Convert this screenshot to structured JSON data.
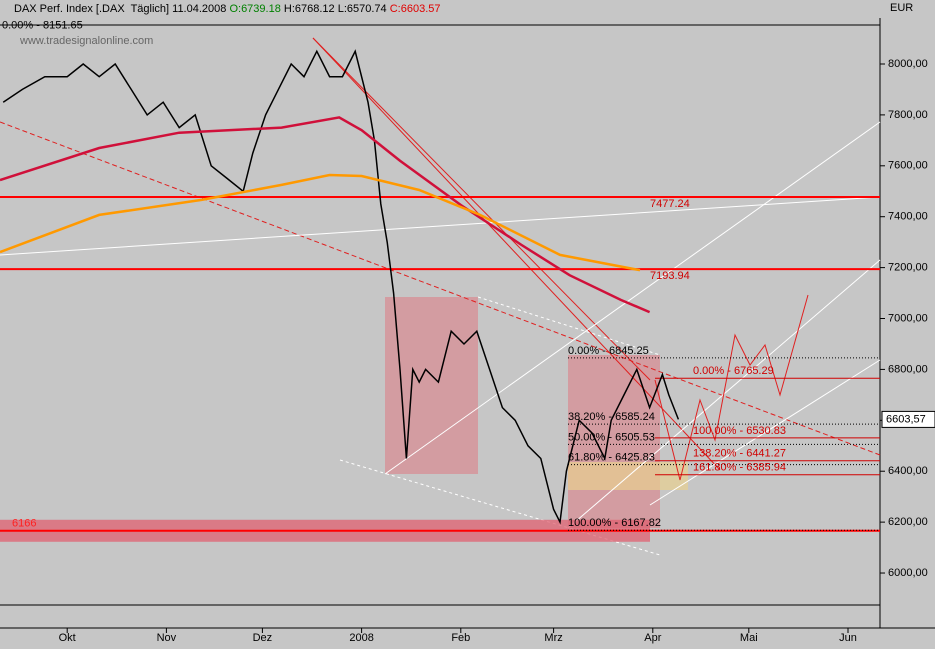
{
  "chart_data": {
    "type": "line",
    "header": {
      "name": "DAX Perf. Index [.DAX  Täglich] 11.04.2008",
      "open": "O:6739.18",
      "high_low": "H:6768.12 L:6570.74",
      "close": "C:6603.57"
    },
    "watermark": "www.tradesignalonline.com",
    "ylabel": "EUR",
    "ylim": [
      5784,
      8165
    ],
    "yticks": [
      {
        "value": 6000,
        "label": "6000,00"
      },
      {
        "value": 6200,
        "label": "6200,00"
      },
      {
        "value": 6400,
        "label": "6400,00"
      },
      {
        "value": 6600,
        "label": "6600,00"
      },
      {
        "value": 6800,
        "label": "6800,00"
      },
      {
        "value": 7000,
        "label": "7000,00"
      },
      {
        "value": 7200,
        "label": "7200,00"
      },
      {
        "value": 7400,
        "label": "7400,00"
      },
      {
        "value": 7600,
        "label": "7600,00"
      },
      {
        "value": 7800,
        "label": "7800,00"
      },
      {
        "value": 8000,
        "label": "8000,00"
      }
    ],
    "xlim": [
      -21,
      254
    ],
    "xticks": [
      {
        "value": 0,
        "label": "Okt"
      },
      {
        "value": 31,
        "label": "Nov"
      },
      {
        "value": 61,
        "label": "Dez"
      },
      {
        "value": 92,
        "label": "2008"
      },
      {
        "value": 123,
        "label": "Feb"
      },
      {
        "value": 152,
        "label": "Mrz"
      },
      {
        "value": 183,
        "label": "Apr"
      },
      {
        "value": 213,
        "label": "Mai"
      },
      {
        "value": 244,
        "label": "Jun"
      }
    ],
    "series": [
      {
        "color": "#000000",
        "x": [
          -20,
          -14,
          -7,
          0,
          5,
          10,
          15,
          20,
          25,
          30,
          35,
          40,
          45,
          50,
          55,
          58,
          62,
          66,
          70,
          74,
          78,
          82,
          86,
          90,
          94,
          96,
          98,
          100,
          102,
          104,
          106,
          108,
          110,
          112,
          116,
          120,
          124,
          128,
          132,
          136,
          140,
          144,
          148,
          150,
          152,
          154,
          156,
          160,
          164,
          168,
          170,
          174,
          178,
          182,
          186,
          188,
          191
        ],
        "values": [
          7850,
          7900,
          7950,
          7950,
          8000,
          7950,
          8000,
          7900,
          7800,
          7850,
          7750,
          7800,
          7600,
          7550,
          7500,
          7650,
          7800,
          7900,
          8000,
          7950,
          8050,
          7950,
          7950,
          8050,
          7850,
          7700,
          7450,
          7300,
          7100,
          6800,
          6450,
          6800,
          6750,
          6800,
          6750,
          6950,
          6900,
          6950,
          6800,
          6650,
          6600,
          6500,
          6450,
          6350,
          6250,
          6200,
          6400,
          6600,
          6550,
          6450,
          6600,
          6700,
          6800,
          6650,
          6780,
          6700,
          6603.57
        ]
      },
      {
        "color": "#d0103a",
        "x": [
          -21,
          10,
          35,
          67,
          85,
          92,
          104,
          123,
          142,
          157,
          173,
          182
        ],
        "values": [
          7544,
          7670,
          7730,
          7750,
          7790,
          7740,
          7620,
          7446,
          7289,
          7170,
          7073,
          7025
        ]
      },
      {
        "color": "#ff9900",
        "x": [
          -21,
          10,
          42,
          67,
          82,
          92,
          110,
          129,
          154,
          179
        ],
        "values": [
          7261,
          7407,
          7466,
          7525,
          7564,
          7560,
          7505,
          7407,
          7250,
          7190
        ]
      }
    ],
    "top_level": {
      "label": "0.00% - 8151.65",
      "value": 8151.65
    },
    "resistance": [
      7477.24,
      7193.94
    ],
    "support": 6166,
    "fib_retracement": [
      {
        "label": "0.00% - 6845.25",
        "value": 6845.25
      },
      {
        "label": "38.20% - 6585.24",
        "value": 6585.24
      },
      {
        "label": "50.00% - 6505.53",
        "value": 6505.53
      },
      {
        "label": "61.80% - 6425.83",
        "value": 6425.83
      },
      {
        "label": "100.00% - 6167.82",
        "value": 6167.82
      }
    ],
    "fib_projection": [
      {
        "label": "0.00% - 6765.29",
        "value": 6765.29
      },
      {
        "label": "100.00% - 6530.83",
        "value": 6530.83
      },
      {
        "label": "138.20% - 6441.27",
        "value": 6441.27
      },
      {
        "label": "161.80% - 6385.94",
        "value": 6385.94
      }
    ],
    "last_price": {
      "value": 6603.57,
      "label": "6603,57"
    }
  }
}
